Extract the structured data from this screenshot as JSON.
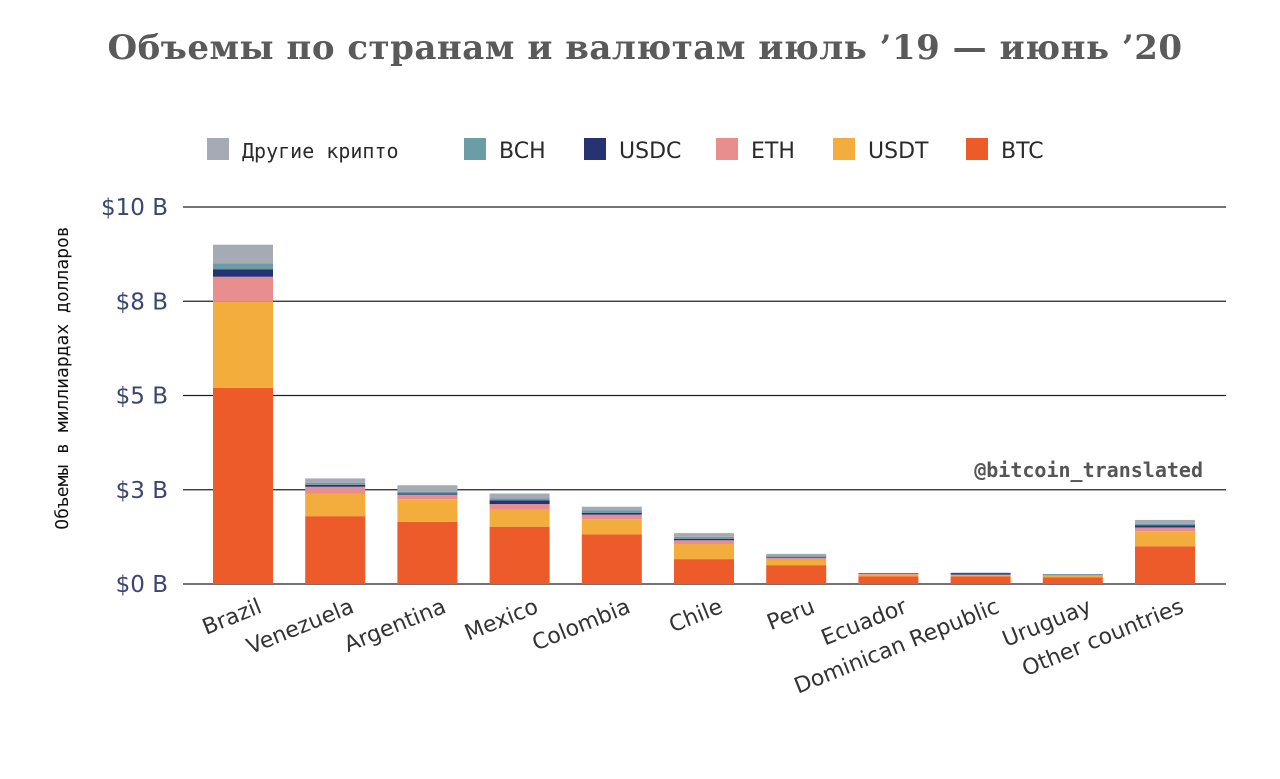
{
  "chart_data": {
    "type": "bar",
    "stacked": true,
    "title": "Объемы по странам и валютам июль ’19 — июнь ’20",
    "ylabel": "Объемы в миллиардах долларов",
    "xlabel": "",
    "ylim": [
      0,
      10
    ],
    "yticks": [
      {
        "value": 0,
        "label": "$0 B"
      },
      {
        "value": 2.5,
        "label": "$3 B"
      },
      {
        "value": 5,
        "label": "$5 B"
      },
      {
        "value": 7.5,
        "label": "$8 B"
      },
      {
        "value": 10,
        "label": "$10 B"
      }
    ],
    "grid": true,
    "legend_position": "top",
    "categories": [
      "Brazil",
      "Venezuela",
      "Argentina",
      "Mexico",
      "Colombia",
      "Chile",
      "Peru",
      "Ecuador",
      "Dominican Republic",
      "Uruguay",
      "Other countries"
    ],
    "series": [
      {
        "name": "BTC",
        "color": "#ee5b2a",
        "values": [
          5.2,
          1.8,
          1.65,
          1.52,
          1.32,
          0.66,
          0.5,
          0.2,
          0.2,
          0.18,
          1.0
        ]
      },
      {
        "name": "USDT",
        "color": "#f2ad3d",
        "values": [
          2.3,
          0.6,
          0.6,
          0.45,
          0.4,
          0.4,
          0.15,
          0.05,
          0.03,
          0.04,
          0.4
        ]
      },
      {
        "name": "ETH",
        "color": "#e98e8e",
        "values": [
          0.65,
          0.18,
          0.12,
          0.15,
          0.12,
          0.1,
          0.05,
          0.02,
          0.02,
          0.02,
          0.1
        ]
      },
      {
        "name": "USDC",
        "color": "#253370",
        "values": [
          0.2,
          0.05,
          0.03,
          0.1,
          0.05,
          0.04,
          0.02,
          0.01,
          0.04,
          0.01,
          0.06
        ]
      },
      {
        "name": "BCH",
        "color": "#6b9da6",
        "values": [
          0.15,
          0.05,
          0.05,
          0.05,
          0.06,
          0.05,
          0.04,
          0.01,
          0.01,
          0.01,
          0.04
        ]
      },
      {
        "name": "Другие крипто",
        "color": "#a5aab4",
        "values": [
          0.5,
          0.12,
          0.17,
          0.13,
          0.1,
          0.1,
          0.04,
          0.0,
          0.0,
          0.0,
          0.1
        ]
      }
    ],
    "legend_order": [
      "Другие крипто",
      "BCH",
      "USDC",
      "ETH",
      "USDT",
      "BTC"
    ]
  },
  "watermark": "@bitcoin_translated"
}
